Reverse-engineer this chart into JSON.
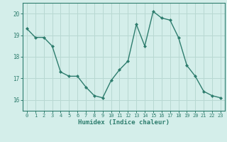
{
  "x": [
    0,
    1,
    2,
    3,
    4,
    5,
    6,
    7,
    8,
    9,
    10,
    11,
    12,
    13,
    14,
    15,
    16,
    17,
    18,
    19,
    20,
    21,
    22,
    23
  ],
  "y": [
    19.3,
    18.9,
    18.9,
    18.5,
    17.3,
    17.1,
    17.1,
    16.6,
    16.2,
    16.1,
    16.9,
    17.4,
    17.8,
    19.5,
    18.5,
    20.1,
    19.8,
    19.7,
    18.9,
    17.6,
    17.1,
    16.4,
    16.2,
    16.1
  ],
  "bg_color": "#d4eeea",
  "line_color": "#2e7d6e",
  "marker_color": "#2e7d6e",
  "grid_color": "#b8d8d2",
  "axis_color": "#2e7d6e",
  "xlabel": "Humidex (Indice chaleur)",
  "ylim": [
    15.5,
    20.5
  ],
  "xlim": [
    -0.5,
    23.5
  ],
  "yticks": [
    16,
    17,
    18,
    19,
    20
  ],
  "xticks": [
    0,
    1,
    2,
    3,
    4,
    5,
    6,
    7,
    8,
    9,
    10,
    11,
    12,
    13,
    14,
    15,
    16,
    17,
    18,
    19,
    20,
    21,
    22,
    23
  ]
}
